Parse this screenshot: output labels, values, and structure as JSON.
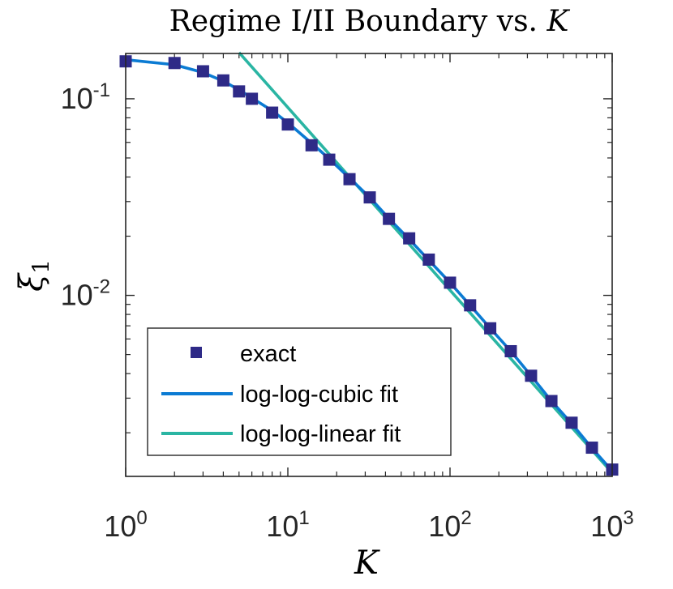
{
  "chart_data": {
    "type": "line",
    "title_text": "Regime I/II Boundary vs. ",
    "title_var": "K",
    "xlabel": "K",
    "ylabel_main": "ξ",
    "ylabel_sub": "1",
    "xscale": "log",
    "yscale": "log",
    "xlim": [
      1,
      1000
    ],
    "ylim": [
      0.0012,
      0.17
    ],
    "x_ticks": [
      {
        "value": 1,
        "base": "10",
        "exp": "0"
      },
      {
        "value": 10,
        "base": "10",
        "exp": "1"
      },
      {
        "value": 100,
        "base": "10",
        "exp": "2"
      },
      {
        "value": 1000,
        "base": "10",
        "exp": "3"
      }
    ],
    "y_ticks": [
      {
        "value": 0.1,
        "base": "10",
        "exp": "-1"
      },
      {
        "value": 0.01,
        "base": "10",
        "exp": "-2"
      }
    ],
    "legend_position": "bottom-left",
    "series": [
      {
        "name": "exact",
        "kind": "markers",
        "color": "#2e2a87",
        "x": [
          1,
          2,
          3,
          4,
          5,
          6,
          8,
          10,
          14,
          18,
          24,
          32,
          42,
          56,
          74,
          100,
          133,
          177,
          237,
          316,
          422,
          562,
          750,
          1000
        ],
        "y": [
          0.155,
          0.152,
          0.138,
          0.124,
          0.109,
          0.1,
          0.085,
          0.074,
          0.058,
          0.049,
          0.039,
          0.0315,
          0.0245,
          0.0195,
          0.0152,
          0.0116,
          0.0089,
          0.0068,
          0.0052,
          0.0039,
          0.0029,
          0.00225,
          0.00168,
          0.0013
        ]
      },
      {
        "name": "log-log-cubic fit",
        "kind": "line",
        "color": "#0b7bd3",
        "x": [
          1,
          2,
          3,
          4,
          5,
          6,
          8,
          10,
          14,
          18,
          24,
          32,
          42,
          56,
          74,
          100,
          133,
          177,
          237,
          316,
          422,
          562,
          750,
          1000
        ],
        "y": [
          0.158,
          0.149,
          0.136,
          0.123,
          0.111,
          0.101,
          0.087,
          0.0755,
          0.0595,
          0.0495,
          0.0395,
          0.0315,
          0.0246,
          0.0193,
          0.0151,
          0.0116,
          0.0089,
          0.0068,
          0.0052,
          0.0039,
          0.0029,
          0.00223,
          0.00167,
          0.00128
        ]
      },
      {
        "name": "log-log-linear fit",
        "kind": "line",
        "color": "#2ab5a3",
        "x": [
          5,
          1000
        ],
        "y": [
          0.172,
          0.00125
        ]
      }
    ]
  }
}
